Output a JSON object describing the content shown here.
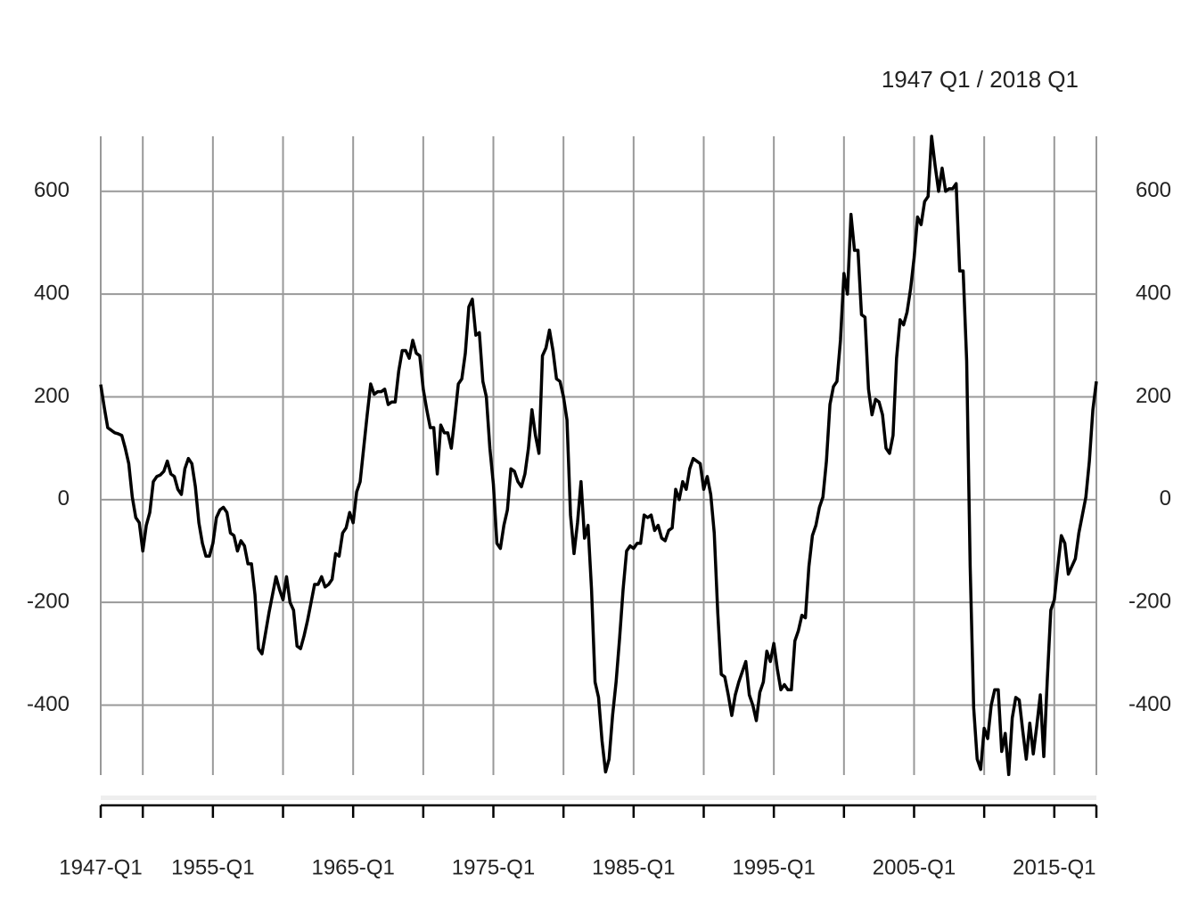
{
  "chart_data": {
    "type": "line",
    "subtitle": "1947 Q1 / 2018 Q1",
    "color": "#000000",
    "grid": true,
    "x": [
      1947,
      1947.25,
      1947.5,
      1947.75,
      1948,
      1948.25,
      1948.5,
      1948.75,
      1949,
      1949.25,
      1949.5,
      1949.75,
      1950,
      1950.25,
      1950.5,
      1950.75,
      1951,
      1951.25,
      1951.5,
      1951.75,
      1952,
      1952.25,
      1952.5,
      1952.75,
      1953,
      1953.25,
      1953.5,
      1953.75,
      1954,
      1954.25,
      1954.5,
      1954.75,
      1955,
      1955.25,
      1955.5,
      1955.75,
      1956,
      1956.25,
      1956.5,
      1956.75,
      1957,
      1957.25,
      1957.5,
      1957.75,
      1958,
      1958.25,
      1958.5,
      1958.75,
      1959,
      1959.25,
      1959.5,
      1959.75,
      1960,
      1960.25,
      1960.5,
      1960.75,
      1961,
      1961.25,
      1961.5,
      1961.75,
      1962,
      1962.25,
      1962.5,
      1962.75,
      1963,
      1963.25,
      1963.5,
      1963.75,
      1964,
      1964.25,
      1964.5,
      1964.75,
      1965,
      1965.25,
      1965.5,
      1965.75,
      1966,
      1966.25,
      1966.5,
      1966.75,
      1967,
      1967.25,
      1967.5,
      1967.75,
      1968,
      1968.25,
      1968.5,
      1968.75,
      1969,
      1969.25,
      1969.5,
      1969.75,
      1970,
      1970.25,
      1970.5,
      1970.75,
      1971,
      1971.25,
      1971.5,
      1971.75,
      1972,
      1972.25,
      1972.5,
      1972.75,
      1973,
      1973.25,
      1973.5,
      1973.75,
      1974,
      1974.25,
      1974.5,
      1974.75,
      1975,
      1975.25,
      1975.5,
      1975.75,
      1976,
      1976.25,
      1976.5,
      1976.75,
      1977,
      1977.25,
      1977.5,
      1977.75,
      1978,
      1978.25,
      1978.5,
      1978.75,
      1979,
      1979.25,
      1979.5,
      1979.75,
      1980,
      1980.25,
      1980.5,
      1980.75,
      1981,
      1981.25,
      1981.5,
      1981.75,
      1982,
      1982.25,
      1982.5,
      1982.75,
      1983,
      1983.25,
      1983.5,
      1983.75,
      1984,
      1984.25,
      1984.5,
      1984.75,
      1985,
      1985.25,
      1985.5,
      1985.75,
      1986,
      1986.25,
      1986.5,
      1986.75,
      1987,
      1987.25,
      1987.5,
      1987.75,
      1988,
      1988.25,
      1988.5,
      1988.75,
      1989,
      1989.25,
      1989.5,
      1989.75,
      1990,
      1990.25,
      1990.5,
      1990.75,
      1991,
      1991.25,
      1991.5,
      1991.75,
      1992,
      1992.25,
      1992.5,
      1992.75,
      1993,
      1993.25,
      1993.5,
      1993.75,
      1994,
      1994.25,
      1994.5,
      1994.75,
      1995,
      1995.25,
      1995.5,
      1995.75,
      1996,
      1996.25,
      1996.5,
      1996.75,
      1997,
      1997.25,
      1997.5,
      1997.75,
      1998,
      1998.25,
      1998.5,
      1998.75,
      1999,
      1999.25,
      1999.5,
      1999.75,
      2000,
      2000.25,
      2000.5,
      2000.75,
      2001,
      2001.25,
      2001.5,
      2001.75,
      2002,
      2002.25,
      2002.5,
      2002.75,
      2003,
      2003.25,
      2003.5,
      2003.75,
      2004,
      2004.25,
      2004.5,
      2004.75,
      2005,
      2005.25,
      2005.5,
      2005.75,
      2006,
      2006.25,
      2006.5,
      2006.75,
      2007,
      2007.25,
      2007.5,
      2007.75,
      2008,
      2008.25,
      2008.5,
      2008.75,
      2009,
      2009.25,
      2009.5,
      2009.75,
      2010,
      2010.25,
      2010.5,
      2010.75,
      2011,
      2011.25,
      2011.5,
      2011.75,
      2012,
      2012.25,
      2012.5,
      2012.75,
      2013,
      2013.25,
      2013.5,
      2013.75,
      2014,
      2014.25,
      2014.5,
      2014.75,
      2015,
      2015.25,
      2015.5,
      2015.75,
      2016,
      2016.25,
      2016.5,
      2016.75,
      2017,
      2017.25,
      2017.5,
      2017.75,
      2018
    ],
    "values": [
      224,
      180,
      140,
      135,
      130,
      128,
      125,
      100,
      70,
      5,
      -35,
      -45,
      -100,
      -50,
      -25,
      35,
      45,
      48,
      55,
      75,
      50,
      45,
      20,
      10,
      60,
      80,
      70,
      25,
      -45,
      -85,
      -110,
      -110,
      -85,
      -35,
      -20,
      -15,
      -25,
      -65,
      -70,
      -100,
      -80,
      -90,
      -125,
      -125,
      -185,
      -290,
      -300,
      -260,
      -220,
      -185,
      -150,
      -175,
      -195,
      -150,
      -200,
      -215,
      -285,
      -290,
      -265,
      -235,
      -200,
      -165,
      -165,
      -150,
      -170,
      -165,
      -155,
      -105,
      -110,
      -65,
      -55,
      -25,
      -45,
      15,
      35,
      100,
      165,
      225,
      205,
      210,
      210,
      215,
      185,
      190,
      190,
      250,
      290,
      290,
      275,
      310,
      285,
      280,
      215,
      175,
      140,
      140,
      50,
      145,
      130,
      130,
      100,
      160,
      225,
      235,
      285,
      375,
      390,
      320,
      325,
      230,
      200,
      100,
      30,
      -85,
      -95,
      -50,
      -20,
      60,
      55,
      35,
      25,
      50,
      100,
      175,
      125,
      90,
      280,
      295,
      330,
      290,
      235,
      230,
      200,
      155,
      -30,
      -105,
      -45,
      35,
      -75,
      -50,
      -175,
      -355,
      -385,
      -470,
      -530,
      -505,
      -420,
      -355,
      -270,
      -175,
      -100,
      -90,
      -95,
      -85,
      -85,
      -30,
      -35,
      -30,
      -60,
      -50,
      -75,
      -80,
      -60,
      -55,
      20,
      0,
      35,
      20,
      60,
      80,
      75,
      70,
      20,
      45,
      10,
      -65,
      -220,
      -340,
      -345,
      -380,
      -420,
      -380,
      -355,
      -335,
      -315,
      -380,
      -400,
      -430,
      -375,
      -355,
      -295,
      -315,
      -280,
      -330,
      -370,
      -360,
      -370,
      -370,
      -275,
      -255,
      -225,
      -230,
      -130,
      -70,
      -50,
      -15,
      5,
      75,
      185,
      220,
      230,
      310,
      440,
      400,
      555,
      485,
      485,
      360,
      355,
      215,
      165,
      195,
      190,
      165,
      100,
      90,
      125,
      275,
      350,
      340,
      365,
      410,
      470,
      550,
      535,
      580,
      590,
      707,
      650,
      600,
      645,
      600,
      605,
      605,
      615,
      445,
      445,
      270,
      -130,
      -405,
      -505,
      -525,
      -445,
      -465,
      -400,
      -370,
      -370,
      -490,
      -455,
      -535,
      -425,
      -385,
      -390,
      -450,
      -505,
      -435,
      -495,
      -440,
      -380,
      -500,
      -350,
      -215,
      -195,
      -130,
      -70,
      -85,
      -145,
      -130,
      -115,
      -65,
      -30,
      5,
      75,
      175,
      230
    ],
    "xlim": [
      1947,
      2018
    ],
    "xticks": [
      {
        "value": 1947,
        "label": "1947-Q1"
      },
      {
        "value": 1955,
        "label": "1955-Q1"
      },
      {
        "value": 1965,
        "label": "1965-Q1"
      },
      {
        "value": 1975,
        "label": "1975-Q1"
      },
      {
        "value": 1985,
        "label": "1985-Q1"
      },
      {
        "value": 1995,
        "label": "1995-Q1"
      },
      {
        "value": 2005,
        "label": "2005-Q1"
      },
      {
        "value": 2015,
        "label": "2015-Q1"
      }
    ],
    "xminor": [
      1947,
      1950,
      1955,
      1960,
      1965,
      1970,
      1975,
      1980,
      1985,
      1990,
      1995,
      2000,
      2005,
      2010,
      2015,
      2018
    ],
    "ylim": [
      -536,
      707
    ],
    "yticks": [
      -400,
      -200,
      0,
      200,
      400,
      600
    ]
  }
}
